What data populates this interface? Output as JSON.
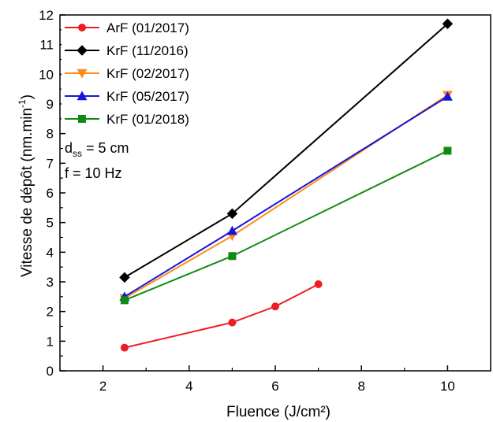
{
  "chart_data": {
    "type": "line",
    "xlabel": "Fluence (J/cm²)",
    "ylabel": "Vitesse de dépôt (nm.min",
    "ylabel_sup": "-1",
    "ylabel_close": ")",
    "xlim": [
      1,
      11
    ],
    "ylim": [
      0,
      12
    ],
    "xticks": [
      2,
      4,
      6,
      8,
      10
    ],
    "yticks": [
      0,
      1,
      2,
      3,
      4,
      5,
      6,
      7,
      8,
      9,
      10,
      11,
      12
    ],
    "grid": false,
    "legend_position": "top-left",
    "series": [
      {
        "name": "ArF (01/2017)",
        "color": "#ee1c24",
        "marker": "circle",
        "x": [
          2.5,
          5,
          6,
          7
        ],
        "y": [
          0.78,
          1.63,
          2.17,
          2.92
        ]
      },
      {
        "name": "KrF (11/2016)",
        "color": "#000000",
        "marker": "diamond",
        "x": [
          2.5,
          5,
          10
        ],
        "y": [
          3.15,
          5.3,
          11.7
        ]
      },
      {
        "name": "KrF (02/2017)",
        "color": "#ff8c1a",
        "marker": "triangle-down",
        "x": [
          2.5,
          5,
          10
        ],
        "y": [
          2.45,
          4.55,
          9.3
        ]
      },
      {
        "name": "KrF (05/2017)",
        "color": "#1515e0",
        "marker": "triangle-up",
        "x": [
          2.5,
          5,
          10
        ],
        "y": [
          2.5,
          4.72,
          9.25
        ]
      },
      {
        "name": "KrF (01/2018)",
        "color": "#118a11",
        "marker": "square",
        "x": [
          2.5,
          5,
          10
        ],
        "y": [
          2.38,
          3.87,
          7.42
        ]
      }
    ],
    "annotations": {
      "dss_main": "d",
      "dss_sub": "ss",
      "dss_value": " = 5 cm",
      "freq": "f = 10 Hz"
    }
  }
}
